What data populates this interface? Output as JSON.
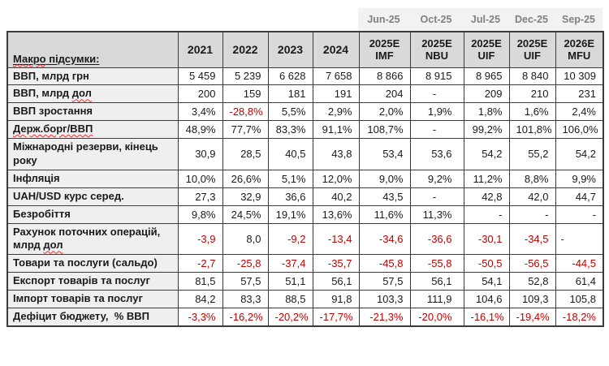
{
  "colors": {
    "negative_value": "#C00000",
    "header_bg": "#D9D9D9",
    "label_column_bg": "#EFEFEF",
    "band_bg": "#F2F2F2",
    "band_text": "#808080",
    "border": "#3B3B3B"
  },
  "table": {
    "top_band": {
      "labels": [
        "Jun-25",
        "Oct-25",
        "Jul-25",
        "Dec-25",
        "Sep-25"
      ]
    },
    "header": {
      "corner_parts": [
        {
          "t": "Макро",
          "sq": true
        },
        {
          "t": " підсумки:",
          "sq": false
        }
      ],
      "columns": [
        [
          "2021"
        ],
        [
          "2022"
        ],
        [
          "2023"
        ],
        [
          "2024"
        ],
        [
          "2025E",
          "IMF"
        ],
        [
          "2025E",
          "NBU"
        ],
        [
          "2025E",
          "UIF"
        ],
        [
          "2025E",
          "UIF"
        ],
        [
          "2026E",
          "MFU"
        ]
      ]
    },
    "rows": [
      {
        "label": [
          {
            "t": "ВВП, млрд грн",
            "sq": false
          }
        ],
        "cells": [
          {
            "v": "5 459"
          },
          {
            "v": "5 239"
          },
          {
            "v": "6 628"
          },
          {
            "v": "7 658"
          },
          {
            "v": "8 866"
          },
          {
            "v": "8 915"
          },
          {
            "v": "8 965"
          },
          {
            "v": "8 840"
          },
          {
            "v": "10 309"
          }
        ]
      },
      {
        "label": [
          {
            "t": "ВВП, млрд ",
            "sq": false
          },
          {
            "t": "дол",
            "sq": true
          }
        ],
        "cells": [
          {
            "v": "200"
          },
          {
            "v": "159"
          },
          {
            "v": "181"
          },
          {
            "v": "191"
          },
          {
            "v": "204"
          },
          {
            "v": "-",
            "align": "center"
          },
          {
            "v": "209"
          },
          {
            "v": "210"
          },
          {
            "v": "231"
          }
        ]
      },
      {
        "label": [
          {
            "t": "ВВП зростання",
            "sq": false
          }
        ],
        "cells": [
          {
            "v": "3,4%"
          },
          {
            "v": "-28,8%",
            "red": true
          },
          {
            "v": "5,5%"
          },
          {
            "v": "2,9%"
          },
          {
            "v": "2,0%"
          },
          {
            "v": "1,9%"
          },
          {
            "v": "1,8%"
          },
          {
            "v": "1,6%"
          },
          {
            "v": "2,4%"
          }
        ]
      },
      {
        "label": [
          {
            "t": "Держ.борг/ВВП",
            "sq": true
          }
        ],
        "cells": [
          {
            "v": "48,9%"
          },
          {
            "v": "77,7%"
          },
          {
            "v": "83,3%"
          },
          {
            "v": "91,1%"
          },
          {
            "v": "108,7%"
          },
          {
            "v": "-",
            "align": "center"
          },
          {
            "v": "99,2%"
          },
          {
            "v": "101,8%"
          },
          {
            "v": "106,0%"
          }
        ]
      },
      {
        "label": [
          {
            "t": "Міжнародні резерви, кінець року",
            "sq": false
          }
        ],
        "cells": [
          {
            "v": "30,9"
          },
          {
            "v": "28,5"
          },
          {
            "v": "40,5"
          },
          {
            "v": "43,8"
          },
          {
            "v": "53,4"
          },
          {
            "v": "53,6"
          },
          {
            "v": "54,2"
          },
          {
            "v": "55,2"
          },
          {
            "v": "54,2"
          }
        ]
      },
      {
        "label": [
          {
            "t": "Інфляція",
            "sq": false
          }
        ],
        "cells": [
          {
            "v": "10,0%"
          },
          {
            "v": "26,6%"
          },
          {
            "v": "5,1%"
          },
          {
            "v": "12,0%"
          },
          {
            "v": "9,0%"
          },
          {
            "v": "9,2%"
          },
          {
            "v": "11,2%"
          },
          {
            "v": "8,8%"
          },
          {
            "v": "9,9%"
          }
        ]
      },
      {
        "label": [
          {
            "t": "UAH/USD курс серед.",
            "sq": false
          }
        ],
        "cells": [
          {
            "v": "27,3"
          },
          {
            "v": "32,9"
          },
          {
            "v": "36,6"
          },
          {
            "v": "40,2"
          },
          {
            "v": "43,5"
          },
          {
            "v": "-",
            "align": "center"
          },
          {
            "v": "42,8"
          },
          {
            "v": "42,0"
          },
          {
            "v": "44,7"
          }
        ]
      },
      {
        "label": [
          {
            "t": "Безробіття",
            "sq": false
          }
        ],
        "cells": [
          {
            "v": "9,8%"
          },
          {
            "v": "24,5%"
          },
          {
            "v": "19,1%"
          },
          {
            "v": "13,6%"
          },
          {
            "v": "11,6%"
          },
          {
            "v": "11,3%"
          },
          {
            "v": "-"
          },
          {
            "v": "-"
          },
          {
            "v": "-"
          }
        ]
      },
      {
        "label": [
          {
            "t": "Рахунок поточних операцій, млрд ",
            "sq": false
          },
          {
            "t": "дол",
            "sq": true
          }
        ],
        "cells": [
          {
            "v": "-3,9",
            "red": true
          },
          {
            "v": "8,0"
          },
          {
            "v": "-9,2",
            "red": true
          },
          {
            "v": "-13,4",
            "red": true
          },
          {
            "v": "-34,6",
            "red": true
          },
          {
            "v": "-36,6",
            "red": true
          },
          {
            "v": "-30,1",
            "red": true
          },
          {
            "v": "-34,5",
            "red": true
          },
          {
            "v": "-",
            "red": true,
            "align": "left"
          }
        ]
      },
      {
        "label": [
          {
            "t": "Товари та послуги (сальдо)",
            "sq": false
          }
        ],
        "cells": [
          {
            "v": "-2,7",
            "red": true
          },
          {
            "v": "-25,8",
            "red": true
          },
          {
            "v": "-37,4",
            "red": true
          },
          {
            "v": "-35,7",
            "red": true
          },
          {
            "v": "-45,8",
            "red": true
          },
          {
            "v": "-55,8",
            "red": true
          },
          {
            "v": "-50,5",
            "red": true
          },
          {
            "v": "-56,5",
            "red": true
          },
          {
            "v": "-44,5",
            "red": true
          }
        ]
      },
      {
        "label": [
          {
            "t": "Експорт товарів та послуг",
            "sq": false
          }
        ],
        "cells": [
          {
            "v": "81,5"
          },
          {
            "v": "57,5"
          },
          {
            "v": "51,1"
          },
          {
            "v": "56,1"
          },
          {
            "v": "57,5"
          },
          {
            "v": "56,1"
          },
          {
            "v": "54,1"
          },
          {
            "v": "52,8"
          },
          {
            "v": "61,4"
          }
        ]
      },
      {
        "label": [
          {
            "t": "Імпорт товарів та послуг",
            "sq": false
          }
        ],
        "cells": [
          {
            "v": "84,2"
          },
          {
            "v": "83,3"
          },
          {
            "v": "88,5"
          },
          {
            "v": "91,8"
          },
          {
            "v": "103,3"
          },
          {
            "v": "111,9"
          },
          {
            "v": "104,6"
          },
          {
            "v": "109,3"
          },
          {
            "v": "105,8"
          }
        ]
      },
      {
        "label": [
          {
            "t": "Дефіцит бюджету,  % ВВП",
            "sq": false
          }
        ],
        "cells": [
          {
            "v": "-3,3%",
            "red": true
          },
          {
            "v": "-16,2%",
            "red": true
          },
          {
            "v": "-20,2%",
            "red": true
          },
          {
            "v": "-17,7%",
            "red": true
          },
          {
            "v": "-21,3%",
            "red": true
          },
          {
            "v": "-20,0%",
            "red": true
          },
          {
            "v": "-16,1%",
            "red": true
          },
          {
            "v": "-19,4%",
            "red": true
          },
          {
            "v": "-18,2%",
            "red": true
          }
        ]
      }
    ]
  }
}
